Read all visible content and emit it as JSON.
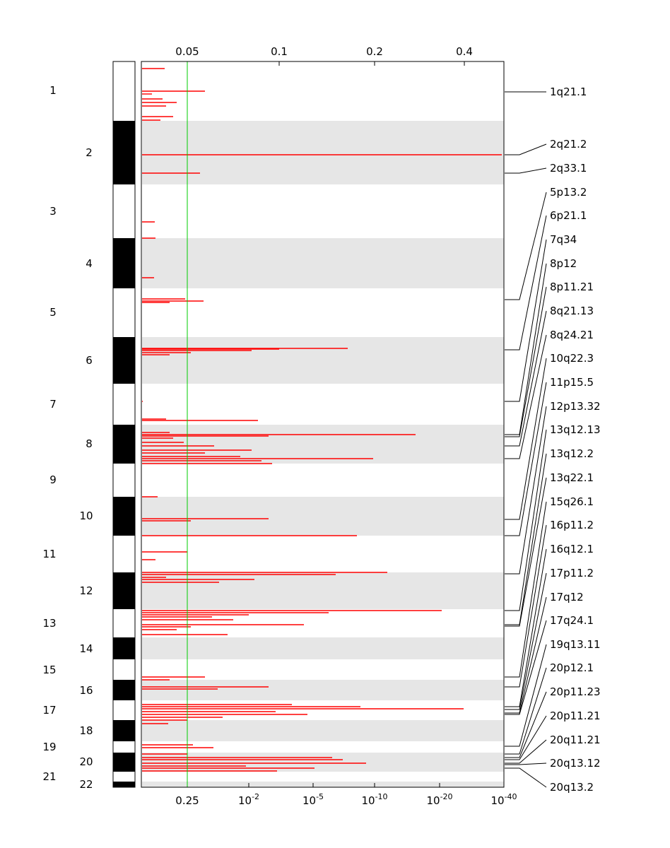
{
  "chart_data": {
    "type": "genome-significance-plot",
    "top_axis_ticks": [
      "0.05",
      "0.1",
      "0.2",
      "0.4"
    ],
    "bottom_axis_ticks": [
      {
        "base": "0.25",
        "exp": ""
      },
      {
        "base": "10",
        "exp": "-2"
      },
      {
        "base": "10",
        "exp": "-5"
      },
      {
        "base": "10",
        "exp": "-10"
      },
      {
        "base": "10",
        "exp": "-20"
      },
      {
        "base": "10",
        "exp": "-40"
      }
    ],
    "threshold_line": {
      "value": "0.25",
      "color": "#00cc00"
    },
    "colors": {
      "segments": "#ff0000",
      "band_shade": "#e6e6e6",
      "chrom_dark": "#000000"
    },
    "chromosomes": [
      "1",
      "2",
      "3",
      "4",
      "5",
      "6",
      "7",
      "8",
      "9",
      "10",
      "11",
      "12",
      "13",
      "14",
      "15",
      "16",
      "17",
      "18",
      "19",
      "20",
      "21",
      "22"
    ],
    "peaks": [
      "1q21.1",
      "2q21.2",
      "2q33.1",
      "5p13.2",
      "6p21.1",
      "7q34",
      "8p12",
      "8p11.21",
      "8q21.13",
      "8q24.21",
      "10q22.3",
      "11p15.5",
      "12p13.32",
      "13q12.13",
      "13q12.2",
      "13q22.1",
      "15q26.1",
      "16p11.2",
      "16q12.1",
      "17p11.2",
      "17q12",
      "17q24.1",
      "19q13.11",
      "20p12.1",
      "20p11.23",
      "20p11.21",
      "20q11.21",
      "20q13.12",
      "20q13.2"
    ]
  }
}
